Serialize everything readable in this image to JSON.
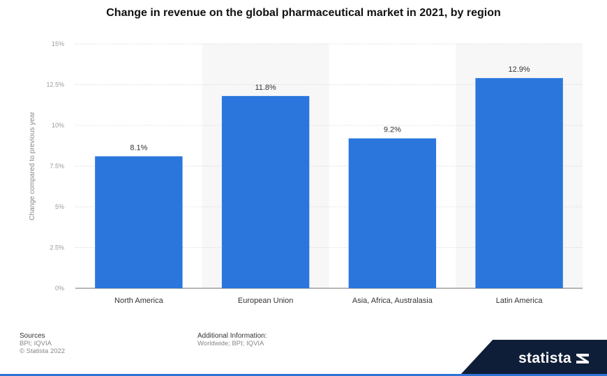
{
  "chart_data": {
    "type": "bar",
    "title": "Change in revenue on the global pharmaceutical market in 2021, by region",
    "xlabel": "",
    "ylabel": "Change compared to previous year",
    "categories": [
      "North America",
      "European Union",
      "Asia, Africa, Australasia",
      "Latin America"
    ],
    "values": [
      8.1,
      11.8,
      9.2,
      12.9
    ],
    "value_labels": [
      "8.1%",
      "11.8%",
      "9.2%",
      "12.9%"
    ],
    "ylim": [
      0,
      15
    ],
    "yticks": [
      0,
      2.5,
      5,
      7.5,
      10,
      12.5,
      15
    ],
    "ytick_labels": [
      "0%",
      "2.5%",
      "5%",
      "7.5%",
      "10%",
      "12.5%",
      "15%"
    ],
    "grid": true,
    "bar_color": "#2a76dd",
    "alt_band_color": "#f7f7f7"
  },
  "footer": {
    "sources_heading": "Sources",
    "sources_lines": [
      "BPI; IQVIA",
      "© Statista 2022"
    ],
    "additional_heading": "Additional Information:",
    "additional_text": "Worldwide; BPI; IQVIA"
  },
  "brand": {
    "name": "statista",
    "logo_icon": "statista-logo-icon",
    "band_color": "#0f1e38",
    "accent_color": "#2e74d6"
  }
}
